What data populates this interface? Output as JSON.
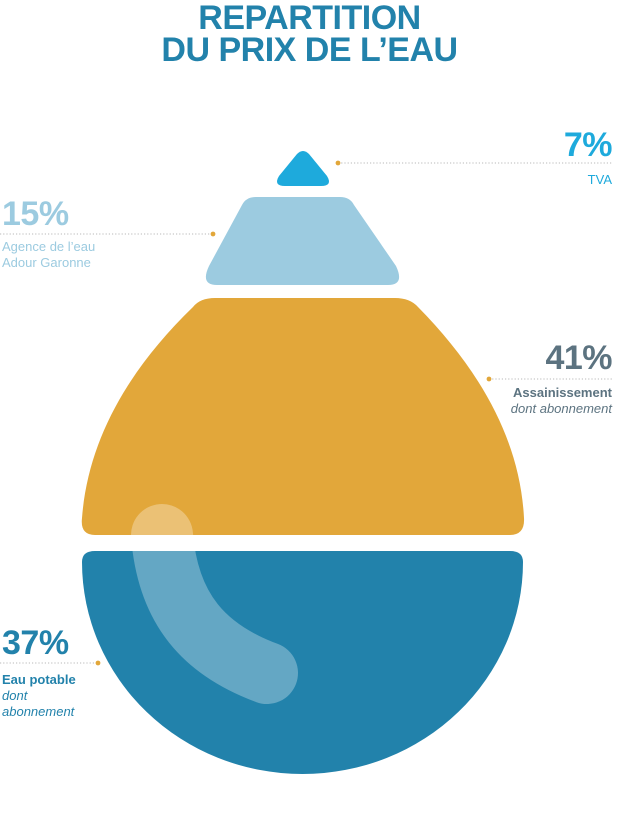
{
  "chart_data": {
    "type": "pie",
    "title_lines": [
      "REPARTITION",
      "DU PRIX DE L’EAU"
    ],
    "segments": [
      {
        "key": "tva",
        "percent_label": "7%",
        "value": 7,
        "label_lines": [
          "TVA"
        ],
        "sub_lines": [],
        "color": "#1eaadc"
      },
      {
        "key": "agence",
        "percent_label": "15%",
        "value": 15,
        "label_lines": [
          "Agence de l’eau",
          "Adour Garonne"
        ],
        "sub_lines": [],
        "color": "#9ccbe0"
      },
      {
        "key": "assainissement",
        "percent_label": "41%",
        "value": 41,
        "label_lines": [
          "Assainissement"
        ],
        "sub_lines": [
          "dont abonnement"
        ],
        "color": "#e2a73a"
      },
      {
        "key": "eau",
        "percent_label": "37%",
        "value": 37,
        "label_lines": [
          "Eau potable"
        ],
        "sub_lines": [
          "dont",
          "abonnement"
        ],
        "color": "#2282ab"
      }
    ]
  },
  "colors": {
    "title": "#2282ab",
    "tva_text": "#1eaadc",
    "agence_text": "#9ccbe0",
    "assainissement_text": "#5c7380",
    "eau_text": "#2282ab",
    "leader_line": "#b8b8b8",
    "leader_dot": "#e2a73a",
    "highlight": "#ffffff"
  }
}
